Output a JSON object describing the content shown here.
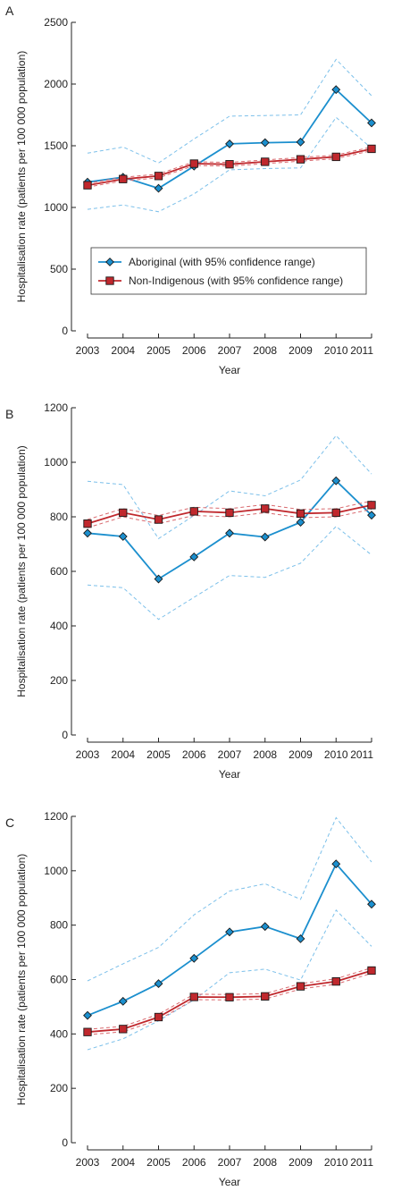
{
  "colors": {
    "aboriginal": "#1b8fce",
    "aboriginal_ci": "#7cc0ea",
    "non_indigenous": "#c0282d",
    "non_indigenous_ci": "#d96a6f",
    "axis": "#222222"
  },
  "legend": {
    "aboriginal": "Aboriginal (with 95% confidence range)",
    "non_indigenous": "Non-Indigenous (with 95% confidence range)"
  },
  "chart_data": [
    {
      "type": "line",
      "panel_label": "A",
      "xlabel": "Year",
      "ylabel": "Hospitalisation rate (patients per 100 000 population)",
      "categories": [
        "2003",
        "2004",
        "2005",
        "2006",
        "2007",
        "2008",
        "2009",
        "2010",
        "2011"
      ],
      "ylim": [
        0,
        2500
      ],
      "yticks": [
        "0",
        "500",
        "1000",
        "1500",
        "2000",
        "2500"
      ],
      "legend_position": "center",
      "series": [
        {
          "name": "Aboriginal (with 95% confidence range)",
          "values": [
            1205,
            1245,
            1155,
            1335,
            1515,
            1525,
            1530,
            1955,
            1685
          ],
          "lower": [
            985,
            1020,
            965,
            1110,
            1305,
            1315,
            1320,
            1730,
            1480
          ],
          "upper": [
            1440,
            1490,
            1360,
            1555,
            1740,
            1745,
            1750,
            2200,
            1905
          ],
          "marker": "diamond"
        },
        {
          "name": "Non-Indigenous (with 95% confidence range)",
          "values": [
            1180,
            1230,
            1255,
            1355,
            1350,
            1370,
            1390,
            1410,
            1475
          ],
          "lower": [
            1165,
            1215,
            1240,
            1340,
            1335,
            1355,
            1375,
            1395,
            1460
          ],
          "upper": [
            1195,
            1245,
            1270,
            1370,
            1365,
            1385,
            1405,
            1425,
            1490
          ],
          "marker": "square"
        }
      ]
    },
    {
      "type": "line",
      "panel_label": "B",
      "xlabel": "Year",
      "ylabel": "Hospitalisation rate (patients per 100 000 population)",
      "categories": [
        "2003",
        "2004",
        "2005",
        "2006",
        "2007",
        "2008",
        "2009",
        "2010",
        "2011"
      ],
      "ylim": [
        0,
        1200
      ],
      "yticks": [
        "0",
        "200",
        "400",
        "600",
        "800",
        "1000",
        "1200"
      ],
      "series": [
        {
          "name": "Aboriginal (with 95% confidence range)",
          "values": [
            740,
            728,
            572,
            653,
            740,
            726,
            780,
            932,
            806
          ],
          "lower": [
            550,
            540,
            424,
            505,
            585,
            578,
            630,
            765,
            660
          ],
          "upper": [
            930,
            918,
            720,
            805,
            895,
            877,
            935,
            1098,
            957
          ],
          "marker": "diamond"
        },
        {
          "name": "Non-Indigenous (with 95% confidence range)",
          "values": [
            775,
            815,
            790,
            820,
            815,
            830,
            812,
            815,
            843
          ],
          "lower": [
            760,
            800,
            775,
            805,
            800,
            815,
            797,
            800,
            828
          ],
          "upper": [
            790,
            830,
            805,
            835,
            830,
            845,
            827,
            830,
            858
          ],
          "marker": "square"
        }
      ]
    },
    {
      "type": "line",
      "panel_label": "C",
      "xlabel": "Year",
      "ylabel": "Hospitalisation rate (patients per 100 000 population)",
      "categories": [
        "2003",
        "2004",
        "2005",
        "2006",
        "2007",
        "2008",
        "2009",
        "2010",
        "2011"
      ],
      "ylim": [
        0,
        1200
      ],
      "yticks": [
        "0",
        "200",
        "400",
        "600",
        "800",
        "1000",
        "1200"
      ],
      "series": [
        {
          "name": "Aboriginal (with 95% confidence range)",
          "values": [
            468,
            520,
            585,
            678,
            775,
            795,
            750,
            1025,
            877
          ],
          "lower": [
            342,
            382,
            448,
            525,
            625,
            638,
            598,
            855,
            722
          ],
          "upper": [
            595,
            658,
            718,
            838,
            925,
            952,
            895,
            1195,
            1032
          ],
          "marker": "diamond"
        },
        {
          "name": "Non-Indigenous (with 95% confidence range)",
          "values": [
            407,
            418,
            462,
            536,
            535,
            538,
            575,
            593,
            633
          ],
          "lower": [
            397,
            408,
            452,
            526,
            525,
            528,
            565,
            583,
            623
          ],
          "upper": [
            417,
            428,
            472,
            546,
            545,
            548,
            585,
            603,
            643
          ],
          "marker": "square"
        }
      ]
    }
  ]
}
